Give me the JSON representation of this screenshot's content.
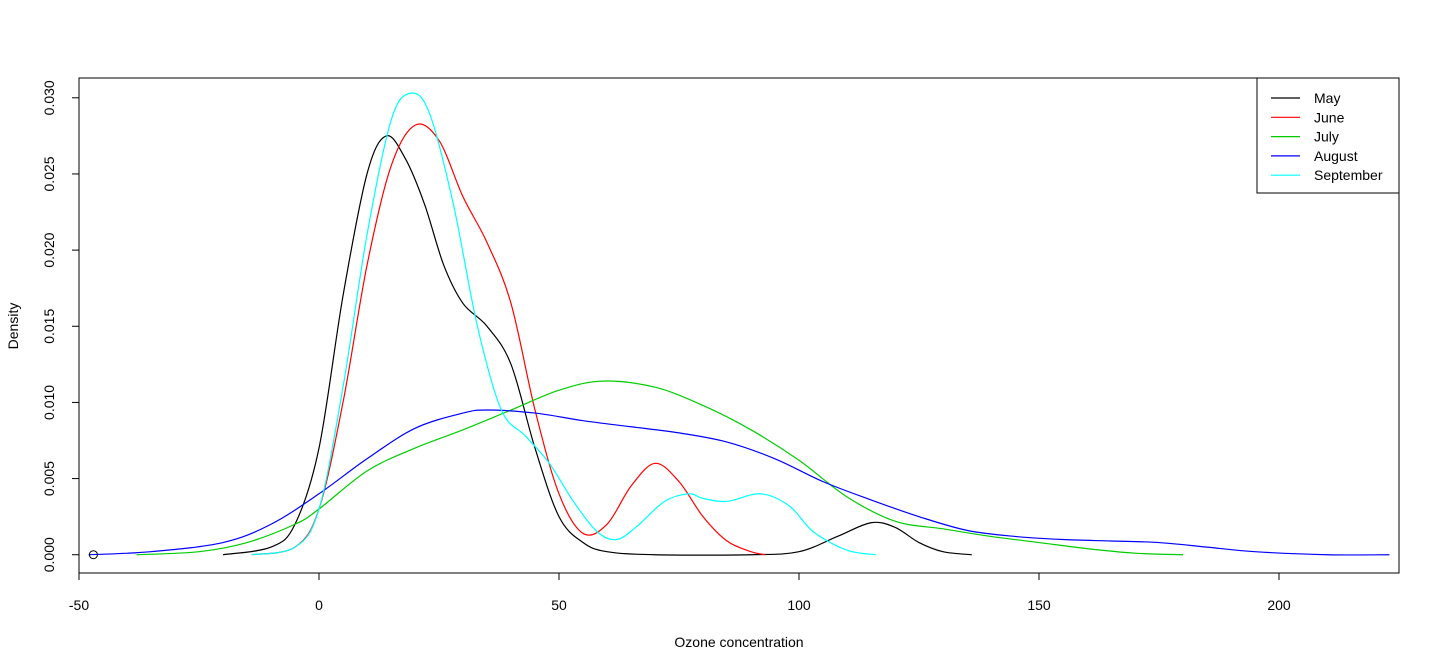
{
  "chart_data": {
    "type": "line",
    "title": "",
    "xlabel": "Ozone concentration",
    "ylabel": "Density",
    "xlim": [
      -50,
      225
    ],
    "ylim": [
      -0.0012,
      0.0313
    ],
    "x_ticks": [
      -50,
      0,
      50,
      100,
      150,
      200
    ],
    "x_tick_labels": [
      "-50",
      "0",
      "50",
      "100",
      "150",
      "200"
    ],
    "y_ticks": [
      0.0,
      0.005,
      0.01,
      0.015,
      0.02,
      0.025,
      0.03
    ],
    "y_tick_labels": [
      "0.000",
      "0.005",
      "0.010",
      "0.015",
      "0.020",
      "0.025",
      "0.030"
    ],
    "grid": false,
    "legend_position": "top-right",
    "series": [
      {
        "name": "May",
        "color": "#000000",
        "points": [
          [
            -20,
            0
          ],
          [
            -10,
            0.0005
          ],
          [
            -5,
            0.002
          ],
          [
            0,
            0.007
          ],
          [
            5,
            0.017
          ],
          [
            10,
            0.025
          ],
          [
            14,
            0.0275
          ],
          [
            18,
            0.026
          ],
          [
            22,
            0.023
          ],
          [
            26,
            0.019
          ],
          [
            30,
            0.0165
          ],
          [
            35,
            0.015
          ],
          [
            40,
            0.0125
          ],
          [
            45,
            0.007
          ],
          [
            50,
            0.0025
          ],
          [
            55,
            0.0008
          ],
          [
            60,
            0.0002
          ],
          [
            70,
            0
          ],
          [
            90,
            0
          ],
          [
            100,
            0.0002
          ],
          [
            108,
            0.0012
          ],
          [
            115,
            0.0021
          ],
          [
            120,
            0.0018
          ],
          [
            125,
            0.0008
          ],
          [
            130,
            0.0002
          ],
          [
            136,
            0
          ]
        ]
      },
      {
        "name": "June",
        "color": "#ff0000",
        "points": [
          [
            -14,
            0
          ],
          [
            -5,
            0.0005
          ],
          [
            0,
            0.003
          ],
          [
            5,
            0.01
          ],
          [
            10,
            0.019
          ],
          [
            15,
            0.0255
          ],
          [
            20,
            0.0282
          ],
          [
            25,
            0.0272
          ],
          [
            30,
            0.0235
          ],
          [
            35,
            0.0205
          ],
          [
            40,
            0.0165
          ],
          [
            45,
            0.0095
          ],
          [
            50,
            0.004
          ],
          [
            55,
            0.0014
          ],
          [
            60,
            0.002
          ],
          [
            65,
            0.0045
          ],
          [
            70,
            0.006
          ],
          [
            75,
            0.0048
          ],
          [
            80,
            0.0025
          ],
          [
            85,
            0.0009
          ],
          [
            90,
            0.0002
          ],
          [
            93,
            0
          ]
        ]
      },
      {
        "name": "July",
        "color": "#00cd00",
        "points": [
          [
            -38,
            0
          ],
          [
            -25,
            0.0002
          ],
          [
            -15,
            0.0008
          ],
          [
            -5,
            0.002
          ],
          [
            0,
            0.003
          ],
          [
            10,
            0.0055
          ],
          [
            20,
            0.007
          ],
          [
            30,
            0.0082
          ],
          [
            40,
            0.0095
          ],
          [
            50,
            0.0108
          ],
          [
            59,
            0.0114
          ],
          [
            70,
            0.011
          ],
          [
            80,
            0.0098
          ],
          [
            90,
            0.0082
          ],
          [
            100,
            0.0062
          ],
          [
            110,
            0.0038
          ],
          [
            120,
            0.0022
          ],
          [
            130,
            0.0017
          ],
          [
            140,
            0.0012
          ],
          [
            150,
            0.0008
          ],
          [
            160,
            0.0004
          ],
          [
            170,
            0.0001
          ],
          [
            180,
            0
          ]
        ]
      },
      {
        "name": "August",
        "color": "#0000ff",
        "points": [
          [
            -48,
            0
          ],
          [
            -35,
            0.0002
          ],
          [
            -20,
            0.0008
          ],
          [
            -10,
            0.002
          ],
          [
            0,
            0.004
          ],
          [
            10,
            0.0063
          ],
          [
            20,
            0.0083
          ],
          [
            30,
            0.0093
          ],
          [
            35,
            0.0095
          ],
          [
            45,
            0.0093
          ],
          [
            55,
            0.0088
          ],
          [
            65,
            0.0084
          ],
          [
            75,
            0.008
          ],
          [
            85,
            0.0074
          ],
          [
            95,
            0.0063
          ],
          [
            105,
            0.0048
          ],
          [
            115,
            0.0036
          ],
          [
            125,
            0.0025
          ],
          [
            135,
            0.0016
          ],
          [
            145,
            0.0012
          ],
          [
            155,
            0.001
          ],
          [
            165,
            0.0009
          ],
          [
            175,
            0.0008
          ],
          [
            185,
            0.0005
          ],
          [
            195,
            0.0002
          ],
          [
            210,
            0
          ],
          [
            223,
            0
          ]
        ]
      },
      {
        "name": "September",
        "color": "#00ffff",
        "points": [
          [
            -14,
            0
          ],
          [
            -5,
            0.0005
          ],
          [
            0,
            0.003
          ],
          [
            5,
            0.011
          ],
          [
            10,
            0.021
          ],
          [
            15,
            0.0285
          ],
          [
            19,
            0.0303
          ],
          [
            23,
            0.029
          ],
          [
            28,
            0.023
          ],
          [
            33,
            0.015
          ],
          [
            38,
            0.0095
          ],
          [
            43,
            0.0078
          ],
          [
            48,
            0.006
          ],
          [
            53,
            0.0035
          ],
          [
            58,
            0.0015
          ],
          [
            62,
            0.001
          ],
          [
            66,
            0.0018
          ],
          [
            72,
            0.0035
          ],
          [
            77,
            0.004
          ],
          [
            80,
            0.0037
          ],
          [
            85,
            0.0035
          ],
          [
            92,
            0.004
          ],
          [
            98,
            0.0032
          ],
          [
            103,
            0.0015
          ],
          [
            110,
            0.0003
          ],
          [
            116,
            0
          ]
        ]
      }
    ],
    "point_marker": [
      -47,
      0
    ]
  }
}
